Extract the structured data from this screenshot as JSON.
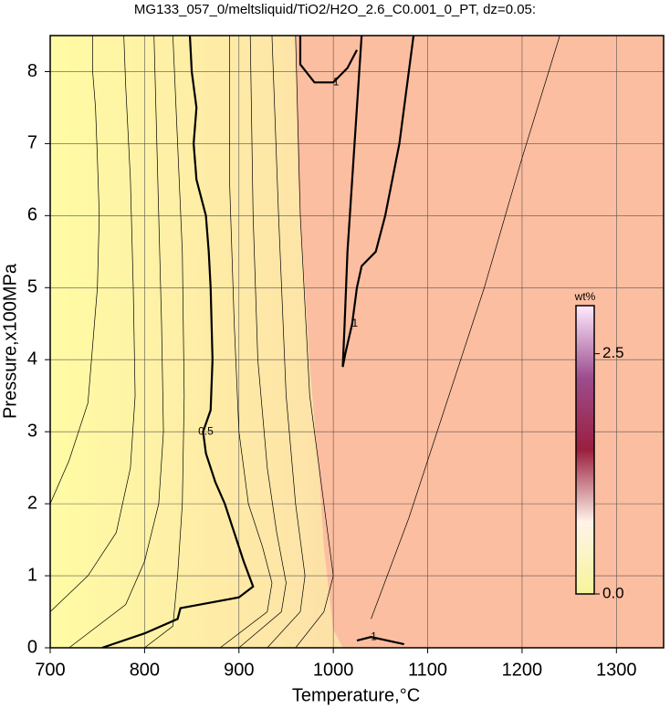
{
  "chart_data": {
    "type": "contour",
    "title": "MG133_057_0/meltsliquid/TiO2/H2O_2.6_C0.001_0_PT, dz=0.05:",
    "xlabel": "Temperature,°C",
    "ylabel": "Pressure,x100MPa",
    "xlim": [
      700,
      1350
    ],
    "ylim": [
      0,
      8.5
    ],
    "xticks": [
      700,
      800,
      900,
      1000,
      1100,
      1200,
      1300
    ],
    "yticks": [
      0,
      1,
      2,
      3,
      4,
      5,
      6,
      7,
      8
    ],
    "grid": true,
    "colorbar": {
      "title": "wt%",
      "lim": [
        0,
        3
      ],
      "ticks": [
        {
          "value": 0,
          "label": "0.0"
        },
        {
          "value": 2.5,
          "label": "2.5"
        }
      ]
    },
    "contours": [
      {
        "label": "0.5",
        "bold": true,
        "x": [
          755,
          800,
          835,
          838,
          900,
          915,
          905,
          895,
          885,
          875,
          865,
          862,
          870,
          872,
          870,
          868,
          865,
          855,
          852,
          855,
          850,
          848
        ],
        "y": [
          0,
          0.2,
          0.4,
          0.55,
          0.7,
          0.85,
          1.2,
          1.6,
          2.0,
          2.3,
          2.7,
          3.0,
          3.3,
          4.0,
          5.0,
          5.5,
          6.0,
          6.5,
          7.0,
          7.5,
          8.0,
          8.5
        ]
      },
      {
        "label": "1",
        "bold": true,
        "x": [
          1030,
          1025,
          1020,
          1015,
          1012,
          1010,
          1013,
          1020,
          1025,
          1030,
          1045,
          1055,
          1070,
          1080,
          1085
        ],
        "y": [
          8.5,
          7.5,
          6.5,
          5.5,
          4.5,
          3.9,
          4.1,
          4.5,
          5.0,
          5.3,
          5.5,
          6.0,
          7.0,
          8.0,
          8.5
        ]
      },
      {
        "label": "1",
        "bold": true,
        "x": [
          965,
          965,
          980,
          1000,
          1015,
          1025
        ],
        "y": [
          8.5,
          8.1,
          7.85,
          7.85,
          8.05,
          8.3
        ]
      },
      {
        "label": "1",
        "bold": true,
        "x": [
          1025,
          1040,
          1075
        ],
        "y": [
          0.1,
          0.15,
          0.05
        ]
      },
      {
        "x": [
          700,
          720,
          740,
          745,
          750,
          752,
          750,
          748,
          745,
          745
        ],
        "y": [
          2.0,
          2.6,
          3.4,
          4.2,
          5.0,
          6.0,
          6.8,
          7.5,
          8.0,
          8.5
        ]
      },
      {
        "x": [
          700,
          740,
          770,
          785,
          790,
          788,
          785,
          780,
          778
        ],
        "y": [
          0.5,
          1.0,
          1.6,
          2.5,
          3.5,
          5.0,
          6.5,
          7.8,
          8.5
        ]
      },
      {
        "x": [
          720,
          780,
          800,
          815,
          820,
          818,
          815,
          812,
          810
        ],
        "y": [
          0,
          0.6,
          1.2,
          2.0,
          3.0,
          4.5,
          6.0,
          7.5,
          8.5
        ]
      },
      {
        "x": [
          800,
          830,
          835,
          840,
          842,
          840,
          835,
          830
        ],
        "y": [
          0,
          0.3,
          1.0,
          2.0,
          3.5,
          5.5,
          7.0,
          8.5
        ]
      },
      {
        "x": [
          880,
          930,
          935,
          925,
          910,
          900,
          895,
          890,
          890
        ],
        "y": [
          0,
          0.5,
          0.9,
          1.4,
          2.0,
          3.0,
          4.5,
          6.5,
          8.5
        ]
      },
      {
        "x": [
          900,
          945,
          950,
          940,
          930,
          920,
          915,
          912
        ],
        "y": [
          0,
          0.5,
          0.9,
          1.6,
          2.5,
          4.0,
          6.0,
          8.5
        ]
      },
      {
        "x": [
          930,
          965,
          970,
          960,
          950,
          942,
          935
        ],
        "y": [
          0,
          0.5,
          1.0,
          2.0,
          3.5,
          6.0,
          8.5
        ]
      },
      {
        "x": [
          960,
          990,
          1000,
          990,
          975,
          965,
          960
        ],
        "y": [
          0,
          0.5,
          1.0,
          2.0,
          3.5,
          6.0,
          8.5
        ]
      },
      {
        "x": [
          1040,
          1080,
          1120,
          1160,
          1200,
          1240
        ],
        "y": [
          0.4,
          1.8,
          3.4,
          5.0,
          6.8,
          8.5
        ]
      }
    ]
  }
}
